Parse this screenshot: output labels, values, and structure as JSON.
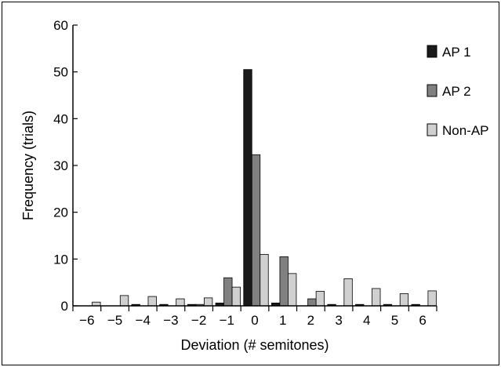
{
  "chart_data": {
    "type": "bar",
    "title": "",
    "xlabel": "Deviation (# semitones)",
    "ylabel": "Frequency (trials)",
    "categories": [
      "−6",
      "−5",
      "−4",
      "−3",
      "−2",
      "−1",
      "0",
      "1",
      "2",
      "3",
      "4",
      "5",
      "6"
    ],
    "ylim": [
      0,
      60
    ],
    "yticks": [
      "0",
      "10",
      "20",
      "30",
      "40",
      "50",
      "60"
    ],
    "grid": false,
    "legend_position": "top-right",
    "series": [
      {
        "name": "AP 1",
        "color": "#1a1a1a",
        "values": [
          0,
          0,
          0.3,
          0.3,
          0.3,
          0.6,
          50.5,
          0.6,
          0,
          0.3,
          0.3,
          0.3,
          0.3
        ]
      },
      {
        "name": "AP 2",
        "color": "#808080",
        "values": [
          0,
          0,
          0,
          0,
          0.3,
          6,
          32.3,
          10.5,
          1.5,
          0,
          0,
          0,
          0
        ]
      },
      {
        "name": "Non-AP",
        "color": "#d0d0d0",
        "values": [
          0.8,
          2.2,
          2,
          1.5,
          1.7,
          4,
          11,
          6.9,
          3.1,
          5.8,
          3.7,
          2.6,
          3.2
        ]
      }
    ]
  }
}
